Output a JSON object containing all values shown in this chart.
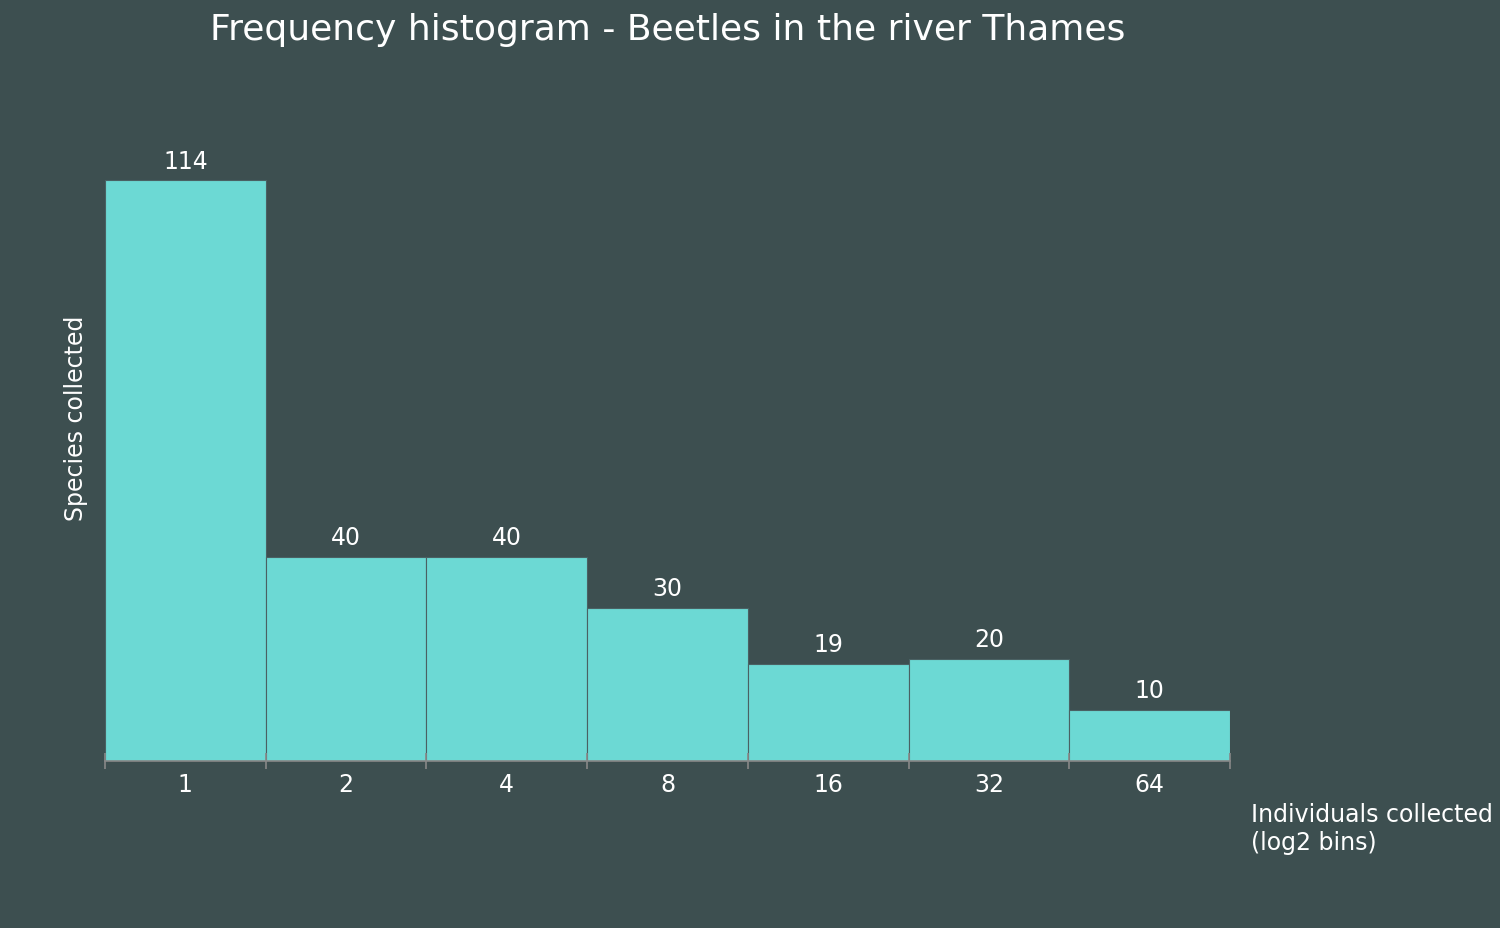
{
  "title": "Frequency histogram - Beetles in the river Thames",
  "xlabel_line1": "Individuals collected",
  "xlabel_line2": "(log2 bins)",
  "ylabel": "Species collected",
  "background_color": "#3d4f50",
  "bar_color": "#6cd9d4",
  "bar_edge_color": "#4a6163",
  "categories": [
    "1",
    "2",
    "4",
    "8",
    "16",
    "32",
    "64"
  ],
  "values": [
    114,
    40,
    40,
    30,
    19,
    20,
    10
  ],
  "title_fontsize": 26,
  "label_fontsize": 17,
  "tick_fontsize": 17,
  "annotation_fontsize": 17,
  "text_color": "#ffffff",
  "spine_color": "#888888",
  "ylim": [
    0,
    135
  ]
}
